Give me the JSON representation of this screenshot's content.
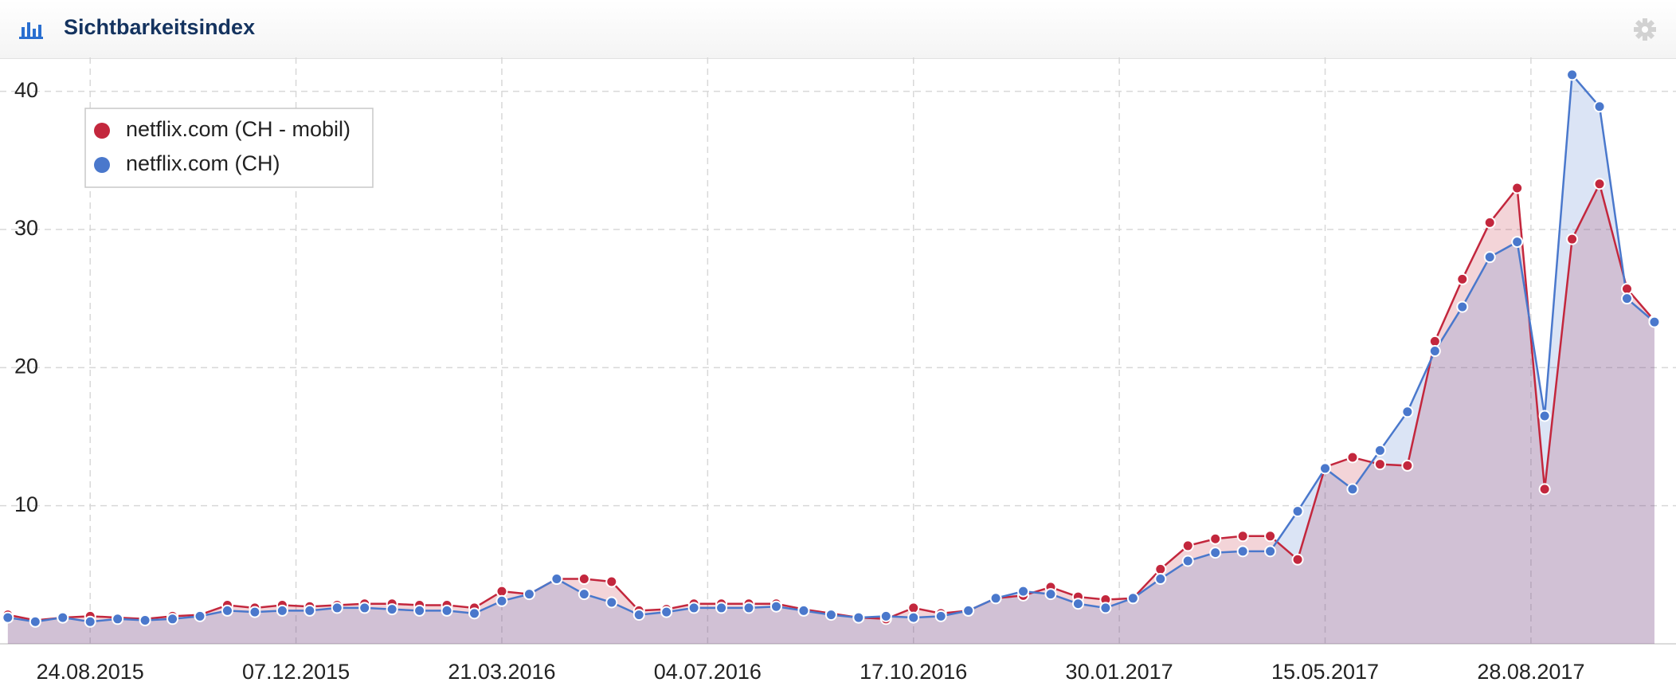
{
  "chart_data": {
    "type": "line",
    "title": "Sichtbarkeitsindex",
    "x": [
      "13.07.2015",
      "27.07.2015",
      "10.08.2015",
      "24.08.2015",
      "07.09.2015",
      "21.09.2015",
      "05.10.2015",
      "19.10.2015",
      "02.11.2015",
      "16.11.2015",
      "30.11.2015",
      "14.12.2015",
      "28.12.2015",
      "11.01.2016",
      "25.01.2016",
      "08.02.2016",
      "22.02.2016",
      "07.03.2016",
      "21.03.2016",
      "04.04.2016",
      "18.04.2016",
      "02.05.2016",
      "16.05.2016",
      "30.05.2016",
      "13.06.2016",
      "27.06.2016",
      "11.07.2016",
      "25.07.2016",
      "08.08.2016",
      "22.08.2016",
      "05.09.2016",
      "19.09.2016",
      "03.10.2016",
      "17.10.2016",
      "31.10.2016",
      "14.11.2016",
      "28.11.2016",
      "12.12.2016",
      "26.12.2016",
      "09.01.2017",
      "23.01.2017",
      "06.02.2017",
      "20.02.2017",
      "06.03.2017",
      "20.03.2017",
      "03.04.2017",
      "17.04.2017",
      "01.05.2017",
      "15.05.2017",
      "29.05.2017",
      "12.06.2017",
      "26.06.2017",
      "10.07.2017",
      "24.07.2017",
      "07.08.2017",
      "21.08.2017",
      "04.09.2017",
      "18.09.2017",
      "02.10.2017",
      "16.10.2017",
      "30.10.2017"
    ],
    "series": [
      {
        "name": "netflix.com (CH - mobil)",
        "color": "#c3273d",
        "values": [
          2.1,
          1.7,
          1.9,
          2.0,
          1.9,
          1.8,
          2.0,
          2.1,
          2.8,
          2.6,
          2.8,
          2.7,
          2.8,
          2.9,
          2.9,
          2.8,
          2.8,
          2.6,
          3.8,
          3.6,
          4.7,
          4.7,
          4.5,
          2.4,
          2.5,
          2.9,
          2.9,
          2.9,
          2.9,
          2.5,
          2.2,
          1.9,
          1.8,
          2.6,
          2.2,
          2.4,
          3.3,
          3.5,
          4.1,
          3.4,
          3.2,
          3.3,
          5.4,
          7.1,
          7.6,
          7.8,
          7.8,
          6.1,
          12.8,
          13.5,
          13.0,
          12.9,
          21.9,
          26.4,
          30.5,
          33.0,
          11.2,
          29.3,
          33.3,
          25.7,
          23.4
        ]
      },
      {
        "name": "netflix.com (CH)",
        "color": "#4a78cc",
        "values": [
          1.9,
          1.6,
          1.9,
          1.6,
          1.8,
          1.7,
          1.8,
          2.0,
          2.4,
          2.3,
          2.4,
          2.4,
          2.6,
          2.6,
          2.5,
          2.4,
          2.4,
          2.2,
          3.1,
          3.6,
          4.7,
          3.6,
          3.0,
          2.1,
          2.3,
          2.6,
          2.6,
          2.6,
          2.7,
          2.4,
          2.1,
          1.9,
          2.0,
          1.9,
          2.0,
          2.4,
          3.3,
          3.8,
          3.6,
          2.9,
          2.6,
          3.3,
          4.7,
          6.0,
          6.6,
          6.7,
          6.7,
          9.6,
          12.7,
          11.2,
          14.0,
          16.8,
          21.2,
          24.4,
          28.0,
          29.1,
          16.5,
          41.2,
          38.9,
          25.0,
          23.3
        ]
      }
    ],
    "xlim": [
      "09.07.2015",
      "10.11.2017"
    ],
    "xticks": [
      "24.08.2015",
      "07.12.2015",
      "21.03.2016",
      "04.07.2016",
      "17.10.2016",
      "30.01.2017",
      "15.05.2017",
      "28.08.2017"
    ],
    "ylim": [
      0,
      42
    ],
    "yticks": [
      10,
      20,
      30,
      40
    ],
    "grid": true,
    "legend": "upper left"
  }
}
